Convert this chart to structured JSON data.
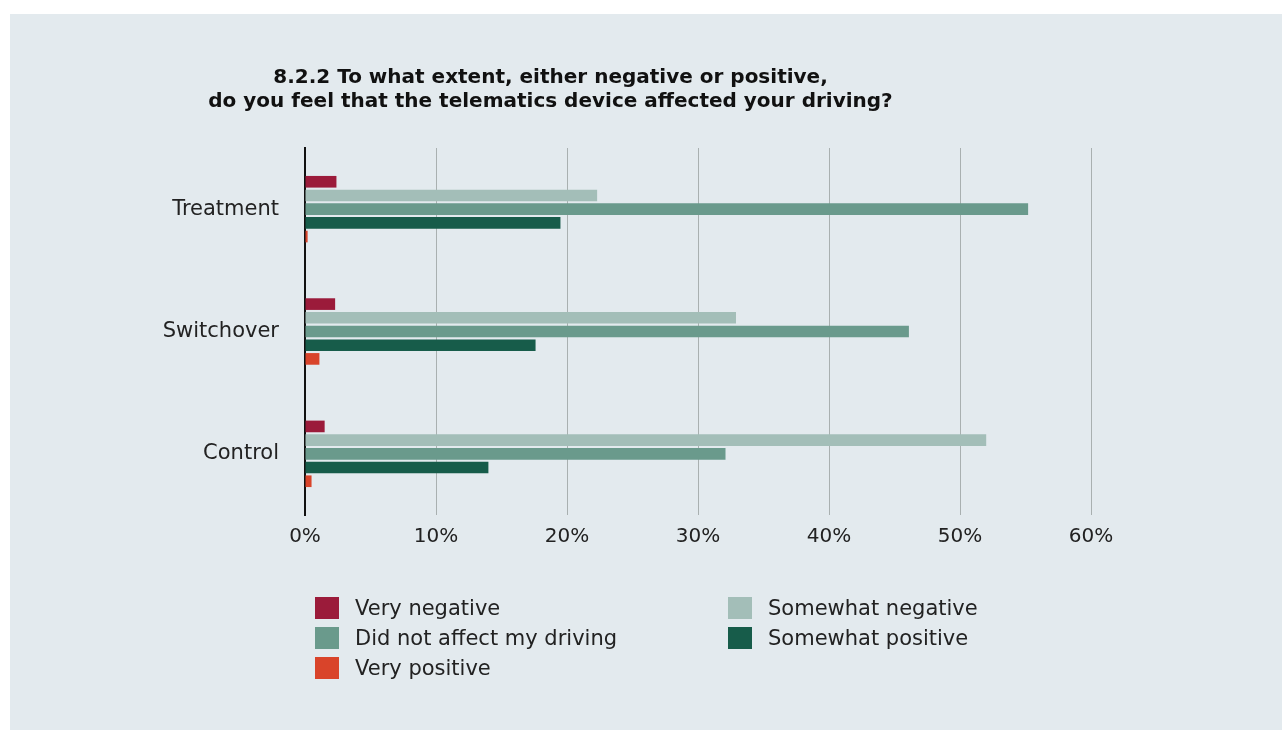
{
  "chart_data": {
    "type": "bar",
    "orientation": "horizontal",
    "title": "8.2.2 To what extent, either negative or positive,\ndo you feel that the telematics device affected your driving?",
    "categories": [
      "Treatment",
      "Switchover",
      "Control"
    ],
    "series": [
      {
        "name": "Very negative",
        "color": "#9b1b3a",
        "values": [
          2.4,
          2.3,
          1.5
        ]
      },
      {
        "name": "Somewhat negative",
        "color": "#a3beb8",
        "values": [
          22.3,
          32.9,
          52.0
        ]
      },
      {
        "name": "Did not affect my driving",
        "color": "#6a9a8c",
        "values": [
          55.2,
          46.1,
          32.1
        ]
      },
      {
        "name": "Somewhat positive",
        "color": "#175c4a",
        "values": [
          19.5,
          17.6,
          14.0
        ]
      },
      {
        "name": "Very positive",
        "color": "#d9442a",
        "values": [
          0.2,
          1.1,
          0.5
        ]
      }
    ],
    "xlim": [
      0,
      60
    ],
    "xticks": [
      {
        "value": 0,
        "label": "0%"
      },
      {
        "value": 10,
        "label": "10%"
      },
      {
        "value": 20,
        "label": "20%"
      },
      {
        "value": 30,
        "label": "30%"
      },
      {
        "value": 40,
        "label": "40%"
      },
      {
        "value": 50,
        "label": "50%"
      },
      {
        "value": 60,
        "label": "60%"
      }
    ],
    "grid": "x",
    "legend": "bottom"
  }
}
